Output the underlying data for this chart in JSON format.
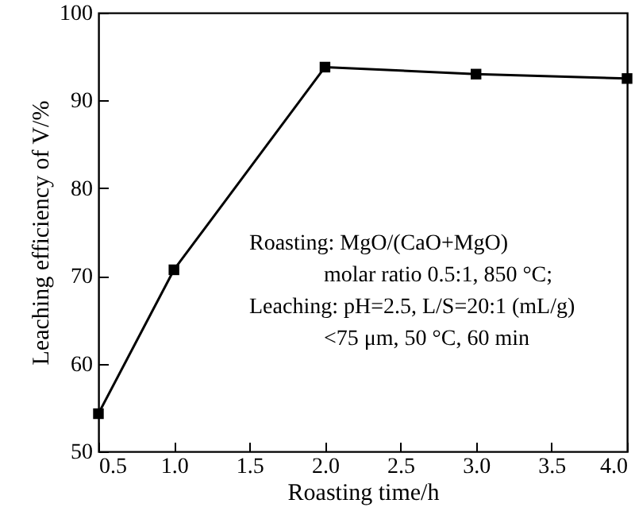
{
  "chart_data": {
    "type": "line",
    "xlabel": "Roasting time/h",
    "ylabel": "Leaching efficiency of V/%",
    "x": [
      0.5,
      1.0,
      2.0,
      3.0,
      4.0
    ],
    "series": [
      {
        "color": "#000000",
        "values": [
          54.3,
          70.7,
          93.8,
          93.0,
          92.5
        ]
      }
    ],
    "xlim": [
      0.5,
      4.0
    ],
    "xticks": [
      {
        "value": 0.5,
        "label": "0.5"
      },
      {
        "value": 1,
        "label": "1.0"
      },
      {
        "value": 1.5,
        "label": "1.5"
      },
      {
        "value": 2,
        "label": "2.0"
      },
      {
        "value": 2.5,
        "label": "2.5"
      },
      {
        "value": 3,
        "label": "3.0"
      },
      {
        "value": 3.5,
        "label": "3.5"
      },
      {
        "value": 4,
        "label": "4.0"
      }
    ],
    "ylim": [
      50,
      100
    ],
    "yticks": [
      50,
      60,
      70,
      80,
      90,
      100
    ],
    "marker": "square",
    "line_style": "solid",
    "grid": false,
    "annotations": [
      "Roasting: MgO/(CaO+MgO)",
      "molar ratio 0.5:1, 850 °C;",
      "Leaching: pH=2.5, L/S=20:1 (mL/g)",
      "<75 μm, 50 °C, 60 min"
    ]
  }
}
